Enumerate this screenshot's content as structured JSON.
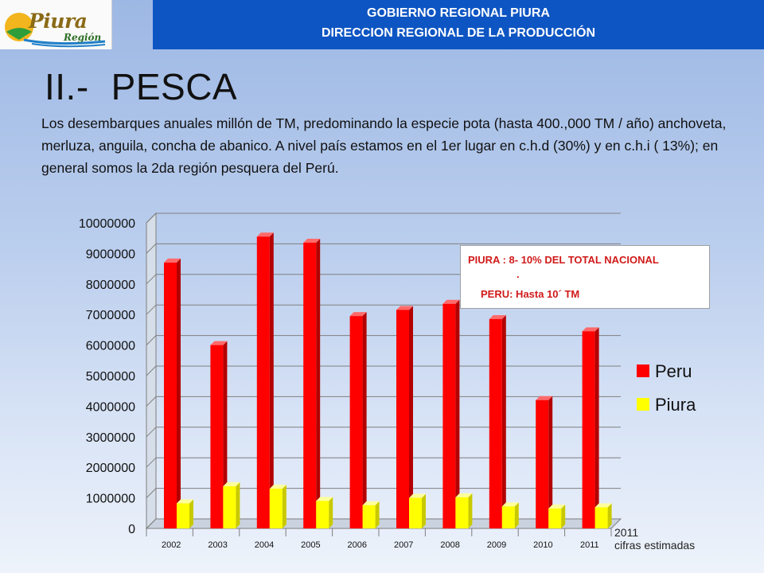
{
  "logo": {
    "word": "Piura",
    "sub": "Región"
  },
  "header": {
    "line1": "GOBIERNO REGIONAL PIURA",
    "line2": "DIRECCION REGIONAL DE LA PRODUCCIÓN"
  },
  "title": {
    "num": "II.-",
    "text": "PESCA"
  },
  "intro": "Los desembarques anuales millón de TM,  predominando la especie pota (hasta 400.,000 TM / año)  anchoveta, merluza, anguila, concha de abanico. A nivel país estamos en el 1er lugar en c.h.d (30%) y en c.h.i ( 13%); en general somos la 2da región pesquera del Perú.",
  "note": {
    "line1": "PIURA  : 8- 10% DEL TOTAL  NACIONAL",
    "line2": ".",
    "line3": "PERU: Hasta 10´ TM"
  },
  "colors": {
    "peru": "#ff0000",
    "piura": "#ffff00",
    "header_band": "#0d55c3",
    "note_text": "#d11a1a"
  },
  "chart_data": {
    "type": "bar",
    "title": "",
    "xlabel": "",
    "ylabel": "",
    "categories": [
      "2002",
      "2003",
      "2004",
      "2005",
      "2006",
      "2007",
      "2008",
      "2009",
      "2010",
      "2011"
    ],
    "series": [
      {
        "name": "Peru",
        "values": [
          8700000,
          6000000,
          9550000,
          9350000,
          6950000,
          7150000,
          7350000,
          6850000,
          4200000,
          6450000
        ]
      },
      {
        "name": "Piura",
        "values": [
          820000,
          1380000,
          1300000,
          900000,
          760000,
          1000000,
          1020000,
          720000,
          650000,
          690000
        ]
      }
    ],
    "ylim": [
      0,
      10000000
    ],
    "yticks": [
      "0",
      "1000000",
      "2000000",
      "3000000",
      "4000000",
      "5000000",
      "6000000",
      "7000000",
      "8000000",
      "9000000",
      "10000000"
    ],
    "grid": true,
    "legend": "right",
    "annotation_line1": "2011",
    "annotation_line2": "cifras estimadas"
  }
}
